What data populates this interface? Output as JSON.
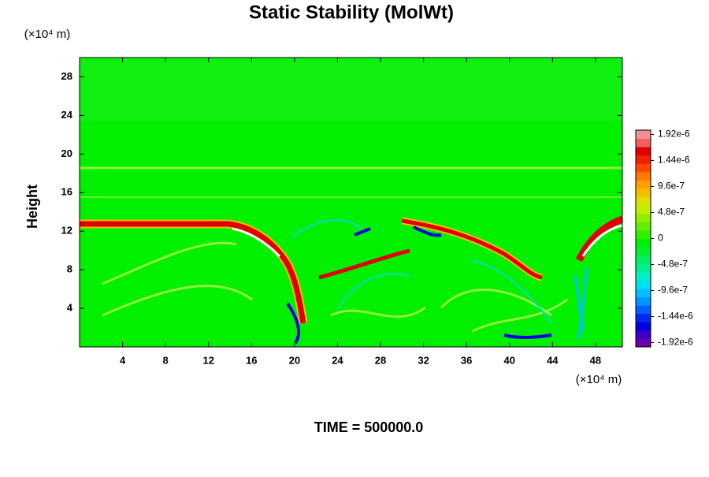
{
  "chart_data": {
    "type": "heatmap",
    "title": "Static Stability (MolWt)",
    "y_unit_label": "(×10⁴ m)",
    "x_unit_label": "(×10⁴ m)",
    "ylabel": "Height",
    "footer": "TIME = 500000.0",
    "xlim": [
      0,
      50.5
    ],
    "xticks": [
      4,
      8,
      12,
      16,
      20,
      24,
      28,
      32,
      36,
      40,
      44,
      48
    ],
    "ylim": [
      0,
      30
    ],
    "yticks": [
      4,
      8,
      12,
      16,
      20,
      24,
      28
    ],
    "clim": [
      -2e-06,
      2e-06
    ],
    "cticks": [
      {
        "value": 1.92e-06,
        "label": "1.92e-6"
      },
      {
        "value": 1.44e-06,
        "label": "1.44e-6"
      },
      {
        "value": 9.6e-07,
        "label": "9.6e-7"
      },
      {
        "value": 4.8e-07,
        "label": "4.8e-7"
      },
      0,
      {
        "value": -4.8e-07,
        "label": "-4.8e-7"
      },
      {
        "value": -9.6e-07,
        "label": "-9.6e-7"
      },
      {
        "value": -1.44e-06,
        "label": "-1.44e-6"
      },
      {
        "value": -1.92e-06,
        "label": "-1.92e-6"
      }
    ],
    "colors": [
      "#6a00a8",
      "#3c00c8",
      "#0000e0",
      "#0028f0",
      "#0060ff",
      "#0096ff",
      "#00c0ff",
      "#00e0f0",
      "#00f0c0",
      "#00f090",
      "#00f060",
      "#00f030",
      "#00f000",
      "#30f000",
      "#60f000",
      "#90f000",
      "#c0f000",
      "#e0e000",
      "#f0c000",
      "#ffa000",
      "#ff7800",
      "#ff4800",
      "#f02000",
      "#e00000",
      "#f06060",
      "#f09090"
    ]
  }
}
